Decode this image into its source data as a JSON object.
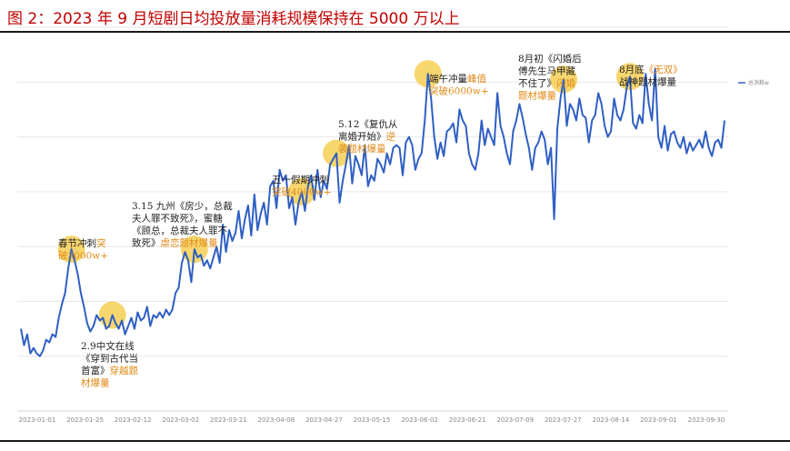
{
  "title": "图 2：2023 年 9 月短剧日均投放量消耗规模保持在 5000 万以上",
  "chart_data": {
    "type": "line",
    "series": [
      {
        "name": "总消耗w",
        "values": [
          1500,
          1200,
          1400,
          1050,
          1150,
          1050,
          1000,
          1100,
          1300,
          1250,
          1400,
          1350,
          1700,
          1950,
          2150,
          2600,
          2950,
          2750,
          2500,
          2150,
          1900,
          1600,
          1450,
          1550,
          1750,
          1650,
          1700,
          1500,
          1550,
          1750,
          1600,
          1500,
          1650,
          1400,
          1550,
          1700,
          1500,
          1800,
          1650,
          1700,
          1900,
          1550,
          1750,
          1700,
          1800,
          1700,
          1850,
          1750,
          1850,
          2150,
          2250,
          2700,
          2900,
          2750,
          2350,
          2950,
          2800,
          2850,
          2650,
          2750,
          2600,
          2800,
          3000,
          2700,
          3400,
          2900,
          3300,
          3100,
          3250,
          3650,
          3150,
          3500,
          3750,
          3200,
          3950,
          3300,
          3600,
          3800,
          3400,
          4100,
          4200,
          3700,
          4400,
          4200,
          4300,
          3700,
          3900,
          3400,
          3800,
          4000,
          3650,
          4100,
          4300,
          3850,
          4400,
          3900,
          4200,
          4050,
          4500,
          4600,
          4700,
          3800,
          4200,
          4500,
          4850,
          4150,
          4650,
          4500,
          4300,
          4850,
          4100,
          4300,
          4200,
          4600,
          4500,
          4350,
          4700,
          4500,
          4800,
          4850,
          4800,
          4300,
          4900,
          5000,
          4850,
          4400,
          4600,
          4700,
          5300,
          6150,
          5700,
          5000,
          4600,
          4900,
          4650,
          5100,
          5150,
          5250,
          4900,
          5500,
          5300,
          5200,
          4700,
          4500,
          4400,
          4700,
          5300,
          4850,
          5150,
          5000,
          4850,
          5800,
          5200,
          5000,
          4700,
          4500,
          5100,
          5300,
          5600,
          5350,
          5050,
          4800,
          4400,
          4800,
          4900,
          5100,
          4950,
          4500,
          4800,
          3500,
          5150,
          5700,
          6050,
          5200,
          5600,
          5500,
          5300,
          5700,
          5400,
          5350,
          4900,
          5300,
          5400,
          5800,
          5600,
          5200,
          5000,
          5100,
          5700,
          5400,
          5300,
          5500,
          5900,
          6100,
          5250,
          5150,
          5400,
          5250,
          6150,
          5600,
          5300,
          6250,
          5000,
          4800,
          5200,
          4750,
          5050,
          5100,
          4900,
          4800,
          5000,
          4700,
          4900,
          4750,
          4850,
          4950,
          4800,
          5100,
          4800,
          4650,
          4900,
          4950,
          4800,
          5300
        ]
      }
    ],
    "x_tick_labels": [
      "2023-01-01",
      "2023-01-25",
      "2023-02-12",
      "2023-03-02",
      "2023-03-21",
      "2023-04-08",
      "2023-04-27",
      "2023-05-15",
      "2023-06-02",
      "2023-06-21",
      "2023-07-09",
      "2023-07-27",
      "2023-08-14",
      "2023-09-01",
      "2023-09-30"
    ],
    "legend": "总消耗w",
    "legend_position": "top-right",
    "ylim": [
      0,
      7000
    ],
    "grid": "horizontal",
    "xlabel": "",
    "ylabel": "",
    "annotations": [
      {
        "marker_index": 16,
        "lines": [
          [
            {
              "t": "春节冲刺",
              "c": "dark"
            },
            {
              "t": "突",
              "c": "orange"
            }
          ],
          [
            {
              "t": "破3000w+",
              "c": "orange"
            }
          ]
        ]
      },
      {
        "marker_index": 29,
        "lines": [
          [
            {
              "t": "2.9中文在线",
              "c": "dark"
            }
          ],
          [
            {
              "t": "《穿到古代当",
              "c": "dark"
            }
          ],
          [
            {
              "t": "首富》",
              "c": "dark"
            },
            {
              "t": "穿越题",
              "c": "orange"
            }
          ],
          [
            {
              "t": "材爆量",
              "c": "orange"
            }
          ]
        ]
      },
      {
        "marker_index": 55,
        "lines": [
          [
            {
              "t": "3.15 九州《房少，总裁",
              "c": "dark"
            }
          ],
          [
            {
              "t": "夫人罪不致死》，蜜糖",
              "c": "dark"
            }
          ],
          [
            {
              "t": "《顾总，总裁夫人罪不",
              "c": "dark"
            }
          ],
          [
            {
              "t": "致死》",
              "c": "dark"
            },
            {
              "t": "虐恋题材爆量",
              "c": "orange"
            }
          ]
        ]
      },
      {
        "marker_index": 89,
        "lines": [
          [
            {
              "t": "五一假期冲刺",
              "c": "dark"
            }
          ],
          [
            {
              "t": "突破4000w+",
              "c": "orange"
            }
          ]
        ]
      },
      {
        "marker_index": 100,
        "lines": [
          [
            {
              "t": "5.12《复仇从",
              "c": "dark"
            }
          ],
          [
            {
              "t": "离婚开始》",
              "c": "dark"
            },
            {
              "t": "逆",
              "c": "orange"
            }
          ],
          [
            {
              "t": "袭题材爆量",
              "c": "orange"
            }
          ]
        ]
      },
      {
        "marker_index": 129,
        "lines": [
          [
            {
              "t": "端午冲量",
              "c": "dark"
            },
            {
              "t": "峰值",
              "c": "orange"
            }
          ],
          [
            {
              "t": "突破6000w+",
              "c": "orange"
            }
          ]
        ]
      },
      {
        "marker_index": 172,
        "lines": [
          [
            {
              "t": "8月初《闪婚后",
              "c": "dark"
            }
          ],
          [
            {
              "t": "傅先生马甲藏",
              "c": "dark"
            }
          ],
          [
            {
              "t": "不住了》",
              "c": "dark"
            },
            {
              "t": "闪婚",
              "c": "orange"
            }
          ],
          [
            {
              "t": "题材爆量",
              "c": "orange"
            }
          ]
        ]
      },
      {
        "marker_index": 193,
        "lines": [
          [
            {
              "t": "8月底",
              "c": "dark"
            },
            {
              "t": "《无双》",
              "c": "orange"
            }
          ],
          [
            {
              "t": "战神题材爆量",
              "c": "dark"
            }
          ]
        ]
      }
    ]
  },
  "colors": {
    "title": "#c00000",
    "line": "#2f5fc4",
    "marker": "#f6cf55",
    "annotation_dark": "#222222",
    "annotation_orange": "#e08a18",
    "grid": "#e6e6e6",
    "tick": "#888888"
  }
}
